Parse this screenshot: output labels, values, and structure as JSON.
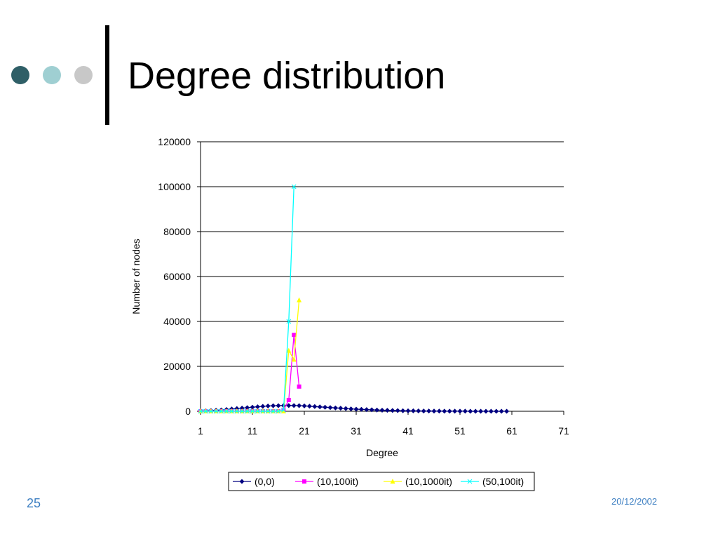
{
  "slide": {
    "title": "Degree distribution",
    "number": "25",
    "date": "20/12/2002"
  },
  "chart_data": {
    "type": "line",
    "xlabel": "Degree",
    "ylabel": "Number of nodes",
    "xlim": [
      1,
      71
    ],
    "ylim": [
      0,
      120000
    ],
    "xticks": [
      1,
      11,
      21,
      31,
      41,
      51,
      61,
      71
    ],
    "yticks": [
      0,
      20000,
      40000,
      60000,
      80000,
      100000,
      120000
    ],
    "grid": "horizontal",
    "legend": "bottom",
    "series": [
      {
        "name": "(0,0)",
        "color": "#000080",
        "marker": "diamond",
        "x": [
          1,
          2,
          3,
          4,
          5,
          6,
          7,
          8,
          9,
          10,
          11,
          12,
          13,
          14,
          15,
          16,
          17,
          18,
          19,
          20,
          21,
          22,
          23,
          24,
          25,
          26,
          27,
          28,
          29,
          30,
          31,
          32,
          33,
          34,
          35,
          36,
          37,
          38,
          39,
          40,
          41,
          42,
          43,
          44,
          45,
          46,
          47,
          48,
          49,
          50,
          51,
          52,
          53,
          54,
          55,
          56,
          57,
          58,
          59,
          60
        ],
        "y": [
          100,
          200,
          300,
          450,
          600,
          800,
          1000,
          1200,
          1400,
          1600,
          1800,
          2000,
          2200,
          2350,
          2450,
          2500,
          2550,
          2550,
          2550,
          2500,
          2400,
          2250,
          2100,
          1950,
          1800,
          1650,
          1500,
          1350,
          1200,
          1050,
          950,
          850,
          750,
          650,
          550,
          480,
          420,
          360,
          300,
          250,
          210,
          180,
          150,
          120,
          100,
          80,
          60,
          50,
          40,
          30,
          25,
          20,
          15,
          12,
          10,
          8,
          6,
          5,
          4,
          3
        ]
      },
      {
        "name": "(10,100it)",
        "color": "#ff00ff",
        "marker": "square",
        "x": [
          1,
          2,
          3,
          4,
          5,
          6,
          7,
          8,
          9,
          10,
          11,
          12,
          13,
          14,
          15,
          16,
          17,
          18,
          19,
          20
        ],
        "y": [
          0,
          0,
          0,
          0,
          0,
          0,
          0,
          0,
          0,
          0,
          0,
          0,
          0,
          0,
          0,
          0,
          500,
          5000,
          34000,
          11000
        ]
      },
      {
        "name": "(10,1000it)",
        "color": "#ffff00",
        "marker": "triangle",
        "x": [
          1,
          2,
          3,
          4,
          5,
          6,
          7,
          8,
          9,
          10,
          11,
          12,
          13,
          14,
          15,
          16,
          17,
          18,
          19,
          20
        ],
        "y": [
          0,
          0,
          0,
          0,
          0,
          0,
          0,
          0,
          0,
          0,
          0,
          0,
          0,
          0,
          0,
          0,
          0,
          27000,
          23000,
          49500
        ]
      },
      {
        "name": "(50,100it)",
        "color": "#00ffff",
        "marker": "x",
        "x": [
          1,
          2,
          3,
          4,
          5,
          6,
          7,
          8,
          9,
          10,
          11,
          12,
          13,
          14,
          15,
          16,
          17,
          18,
          19
        ],
        "y": [
          0,
          0,
          0,
          0,
          0,
          0,
          0,
          0,
          0,
          0,
          0,
          0,
          0,
          0,
          0,
          0,
          500,
          40000,
          100000
        ]
      }
    ]
  }
}
